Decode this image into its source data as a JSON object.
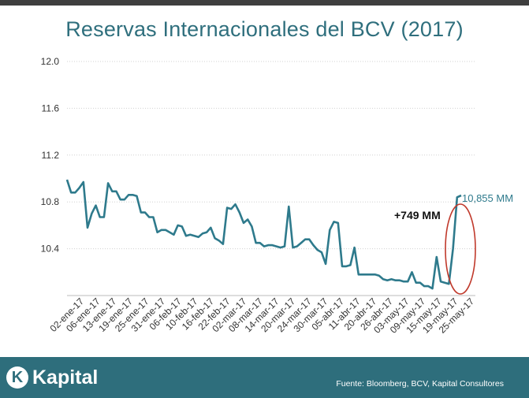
{
  "header": {
    "title": "Reservas Internacionales del BCV (2017)"
  },
  "footer": {
    "logo_mark": "K",
    "logo_text": "Kapital",
    "source": "Fuente: Bloomberg, BCV, Kapital Consultores"
  },
  "annotations": {
    "change_label": "+749 MM",
    "last_value_label": "10,855 MM"
  },
  "colors": {
    "line": "#2e7a8c",
    "grid": "#d0d0d0",
    "ellipse": "#c0392b",
    "footer": "#2e6e7c",
    "title": "#2f6f7d"
  },
  "chart_data": {
    "type": "line",
    "title": "Reservas Internacionales del BCV (2017)",
    "ylim": [
      10.0,
      12.0
    ],
    "yticks": [
      "10.4",
      "10.8",
      "11.2",
      "11.6",
      "12.0"
    ],
    "grid": "horizontal dotted",
    "xtick_labels": [
      "02-ene-17",
      "06-ene-17",
      "13-ene-17",
      "19-ene-17",
      "25-ene-17",
      "31-ene-17",
      "06-feb-17",
      "10-feb-17",
      "16-feb-17",
      "22-feb-17",
      "02-mar-17",
      "08-mar-17",
      "14-mar-17",
      "20-mar-17",
      "24-mar-17",
      "30-mar-17",
      "05-abr-17",
      "11-abr-17",
      "20-abr-17",
      "26-abr-17",
      "03-may-17",
      "09-may-17",
      "15-may-17",
      "19-may-17",
      "25-may-17"
    ],
    "x_start": "02-ene-17",
    "x_end": "25-may-17",
    "series": [
      {
        "values": [
          10.99,
          10.88,
          10.88,
          10.92,
          10.97,
          10.58,
          10.7,
          10.77,
          10.67,
          10.67,
          10.96,
          10.89,
          10.89,
          10.82,
          10.82,
          10.86,
          10.86,
          10.85,
          10.71,
          10.71,
          10.67,
          10.67,
          10.54,
          10.56,
          10.56,
          10.54,
          10.52,
          10.6,
          10.59,
          10.51,
          10.52,
          10.51,
          10.5,
          10.53,
          10.54,
          10.58,
          10.49,
          10.47,
          10.44,
          10.75,
          10.74,
          10.78,
          10.71,
          10.62,
          10.65,
          10.59,
          10.45,
          10.45,
          10.42,
          10.43,
          10.43,
          10.42,
          10.41,
          10.42,
          10.76,
          10.41,
          10.42,
          10.45,
          10.48,
          10.48,
          10.43,
          10.39,
          10.37,
          10.27,
          10.56,
          10.63,
          10.62,
          10.25,
          10.25,
          10.26,
          10.41,
          10.18,
          10.18,
          10.18,
          10.18,
          10.18,
          10.17,
          10.14,
          10.13,
          10.14,
          10.13,
          10.13,
          10.12,
          10.12,
          10.2,
          10.11,
          10.11,
          10.08,
          10.08,
          10.06,
          10.33,
          10.12,
          10.11,
          10.1,
          10.4,
          10.84,
          10.855
        ]
      }
    ]
  }
}
